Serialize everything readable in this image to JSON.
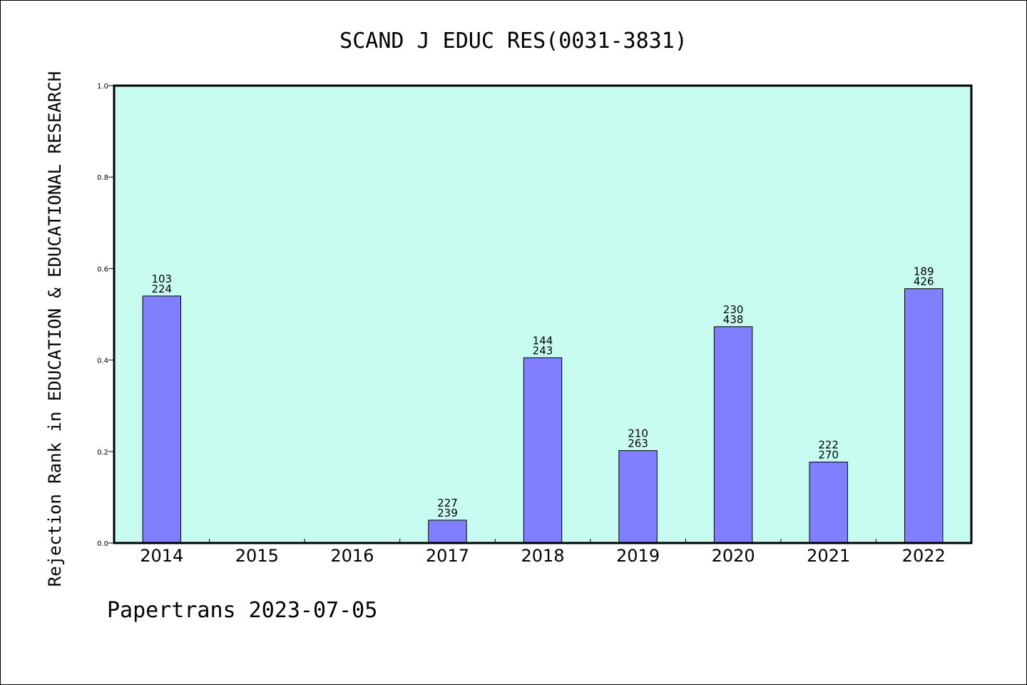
{
  "chart_data": {
    "type": "bar",
    "title": "SCAND J EDUC RES(0031-3831)",
    "xlabel": "",
    "ylabel": "Rejection Rank in EDUCATION & EDUCATIONAL RESEARCH",
    "categories": [
      "2014",
      "2015",
      "2016",
      "2017",
      "2018",
      "2019",
      "2020",
      "2021",
      "2022"
    ],
    "values": [
      0.54,
      0,
      0,
      0.05,
      0.405,
      0.202,
      0.473,
      0.177,
      0.556
    ],
    "bar_labels": [
      [
        "103",
        "224"
      ],
      null,
      null,
      [
        "227",
        "239"
      ],
      [
        "144",
        "243"
      ],
      [
        "210",
        "263"
      ],
      [
        "230",
        "438"
      ],
      [
        "222",
        "270"
      ],
      [
        "189",
        "426"
      ]
    ],
    "ylim": [
      0,
      1.0
    ],
    "yticks": [
      "0.0",
      "0.2",
      "0.4",
      "0.6",
      "0.8",
      "1.0"
    ],
    "grid": false,
    "colors": {
      "plot_background": "#c8fcf0",
      "bar_fill": "#8080ff",
      "bar_stroke": "#000000"
    }
  },
  "footer": "Papertrans 2023-07-05"
}
